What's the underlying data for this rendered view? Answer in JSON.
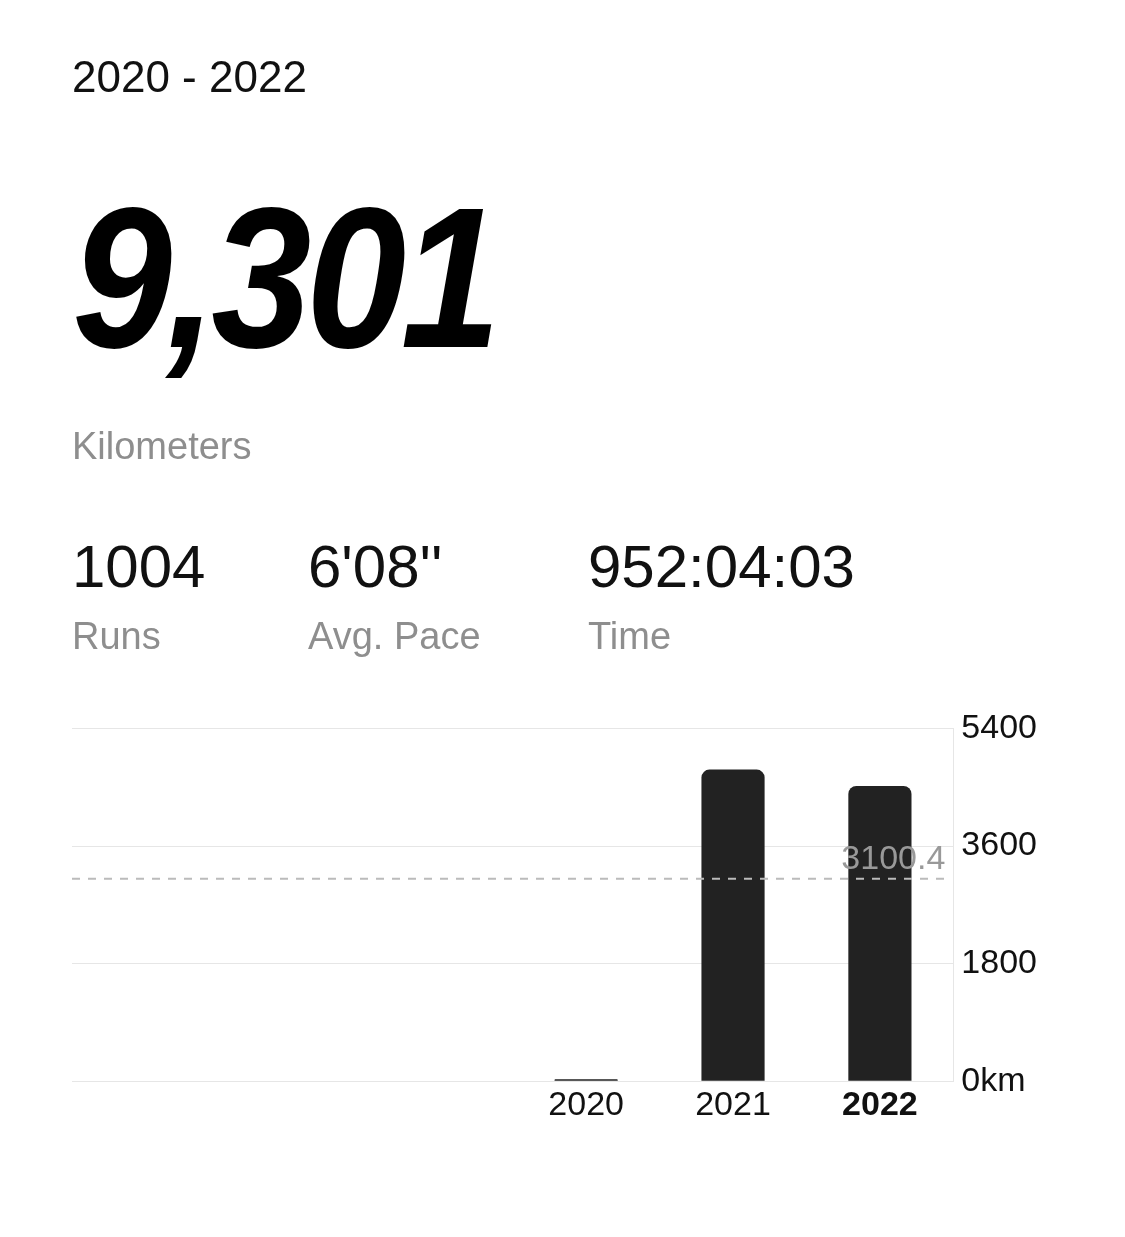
{
  "chart_data": {
    "type": "bar",
    "title": "2020 - 2022",
    "annotations": [
      "9,301",
      "Kilometers",
      "1004",
      "Runs",
      "6'08''",
      "Avg. Pace",
      "952:04:03",
      "Time"
    ],
    "categories": [
      null,
      null,
      null,
      "2020",
      "2021",
      "2022"
    ],
    "values": [
      null,
      null,
      null,
      30,
      4770,
      4520
    ],
    "color": "#222222",
    "ylim": [
      0,
      5400
    ],
    "yticks": [
      {
        "value": 0,
        "label": "0km"
      },
      1800,
      3600,
      5400
    ],
    "grid": "y",
    "legend": false,
    "ref_lines": [
      {
        "axis": "y",
        "value": 3100.4,
        "label": "3100.4",
        "color": "#bbbbbb",
        "line_style": "dashed"
      }
    ]
  }
}
